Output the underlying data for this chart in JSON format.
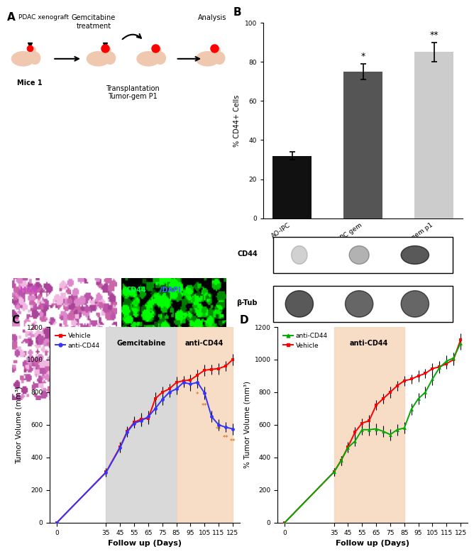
{
  "panel_B": {
    "categories": [
      "AO-IPC",
      "AO-IPC gem",
      "AO-IPC gem p1"
    ],
    "values": [
      32,
      75,
      85
    ],
    "errors": [
      2,
      4,
      5
    ],
    "colors": [
      "#111111",
      "#555555",
      "#cccccc"
    ],
    "ylabel": "% CD44+ Cells",
    "ylim": [
      0,
      100
    ],
    "yticks": [
      0,
      20,
      40,
      60,
      80,
      100
    ],
    "sig_labels": [
      "",
      "*",
      "**"
    ]
  },
  "panel_C": {
    "days": [
      0,
      35,
      45,
      50,
      55,
      60,
      65,
      70,
      75,
      80,
      85,
      90,
      95,
      100,
      105,
      110,
      115,
      120,
      125
    ],
    "vehicle": [
      0,
      310,
      465,
      560,
      615,
      635,
      640,
      760,
      800,
      820,
      860,
      870,
      875,
      905,
      935,
      940,
      945,
      960,
      1000
    ],
    "vehicle_err": [
      0,
      25,
      30,
      30,
      35,
      40,
      35,
      40,
      35,
      30,
      35,
      30,
      35,
      35,
      35,
      30,
      35,
      30,
      35
    ],
    "antiCD44": [
      0,
      308,
      460,
      555,
      610,
      625,
      650,
      700,
      755,
      800,
      820,
      860,
      850,
      860,
      795,
      650,
      600,
      585,
      575
    ],
    "antiCD44_err": [
      0,
      25,
      30,
      30,
      30,
      35,
      35,
      35,
      35,
      30,
      35,
      30,
      40,
      35,
      40,
      35,
      35,
      30,
      35
    ],
    "ylabel": "Tumor Volume (mm³)",
    "xlabel": "Follow up (Days)",
    "ylim": [
      0,
      1200
    ],
    "yticks": [
      0,
      200,
      400,
      600,
      800,
      1000,
      1200
    ],
    "xticks": [
      0,
      35,
      45,
      55,
      65,
      75,
      85,
      95,
      105,
      115,
      125
    ],
    "gemcitabine_region": [
      35,
      85
    ],
    "antiCD44_region": [
      85,
      125
    ],
    "sig_days": [
      100,
      105,
      115,
      120,
      125
    ],
    "sig_labels_C": [
      "*",
      "**",
      "**",
      "**",
      "**"
    ],
    "sig_vals": [
      860,
      790,
      645,
      595,
      572
    ]
  },
  "panel_D": {
    "days": [
      0,
      35,
      40,
      45,
      50,
      55,
      60,
      65,
      70,
      75,
      80,
      85,
      90,
      95,
      100,
      105,
      110,
      115,
      120,
      125
    ],
    "vehicle": [
      0,
      310,
      380,
      465,
      555,
      610,
      625,
      720,
      760,
      800,
      840,
      870,
      880,
      900,
      915,
      945,
      955,
      975,
      1000,
      1120
    ],
    "vehicle_err": [
      0,
      25,
      28,
      30,
      30,
      30,
      35,
      30,
      30,
      35,
      30,
      30,
      30,
      35,
      30,
      35,
      35,
      30,
      35,
      40
    ],
    "antiCD44": [
      0,
      310,
      380,
      460,
      500,
      570,
      570,
      575,
      560,
      540,
      570,
      580,
      695,
      760,
      800,
      880,
      950,
      990,
      1010,
      1100
    ],
    "antiCD44_err": [
      0,
      25,
      28,
      30,
      30,
      30,
      35,
      35,
      35,
      35,
      35,
      35,
      35,
      35,
      35,
      35,
      35,
      35,
      35,
      40
    ],
    "ylabel": "% Tumor Volume (mm³)",
    "xlabel": "Follow up (Days)",
    "ylim": [
      0,
      1200
    ],
    "yticks": [
      0,
      200,
      400,
      600,
      800,
      1000,
      1200
    ],
    "xticks": [
      0,
      35,
      45,
      55,
      65,
      75,
      85,
      95,
      105,
      115,
      125
    ],
    "antiCD44_region": [
      35,
      85
    ]
  },
  "colors": {
    "vehicle": "#ff0000",
    "antiCD44_C": "#3333ff",
    "antiCD44_D": "#00aa00",
    "gemcitabine_bg": "#d0d0d0",
    "antiCD44_bg": "#f5d5b8",
    "background": "#ffffff"
  },
  "layout": {
    "fig_width": 6.69,
    "fig_height": 7.66,
    "dpi": 100
  }
}
